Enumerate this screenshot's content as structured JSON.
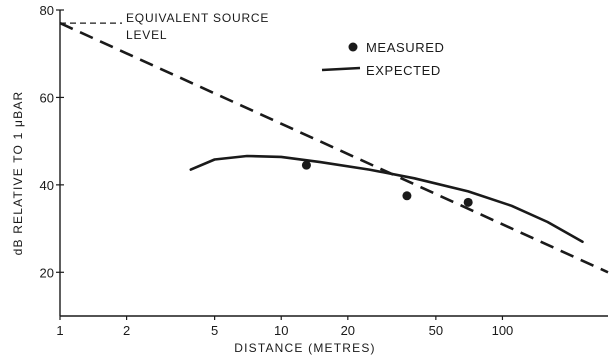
{
  "chart_data": {
    "type": "line",
    "xlabel": "DISTANCE (METRES)",
    "ylabel": "dB RELATIVE TO 1 μBAR",
    "xscale": "log",
    "xlim": [
      1,
      300
    ],
    "ylim": [
      10,
      80
    ],
    "x_ticks": [
      1,
      2,
      5,
      10,
      20,
      50,
      100
    ],
    "y_ticks": [
      20,
      40,
      60,
      80
    ],
    "grid": false,
    "legend_position": "top-right",
    "annotation": {
      "line1": "EQUIVALENT SOURCE",
      "line2": "LEVEL",
      "y": 77
    },
    "series": [
      {
        "name": "MEASURED",
        "kind": "scatter",
        "color": "#1a1a1a",
        "points": [
          [
            13,
            44.5
          ],
          [
            37,
            37.5
          ],
          [
            70,
            36
          ]
        ]
      },
      {
        "name": "EXPECTED",
        "kind": "line",
        "style": "solid",
        "color": "#1a1a1a",
        "points": [
          [
            3.9,
            43.5
          ],
          [
            5,
            45.8
          ],
          [
            7,
            46.6
          ],
          [
            10,
            46.4
          ],
          [
            15,
            45.2
          ],
          [
            25,
            43.5
          ],
          [
            40,
            41.5
          ],
          [
            70,
            38.5
          ],
          [
            110,
            35.2
          ],
          [
            160,
            31.5
          ],
          [
            230,
            27
          ]
        ]
      },
      {
        "name": "",
        "kind": "line",
        "style": "dashed",
        "color": "#1a1a1a",
        "points": [
          [
            1,
            77
          ],
          [
            300,
            20
          ]
        ]
      }
    ]
  }
}
